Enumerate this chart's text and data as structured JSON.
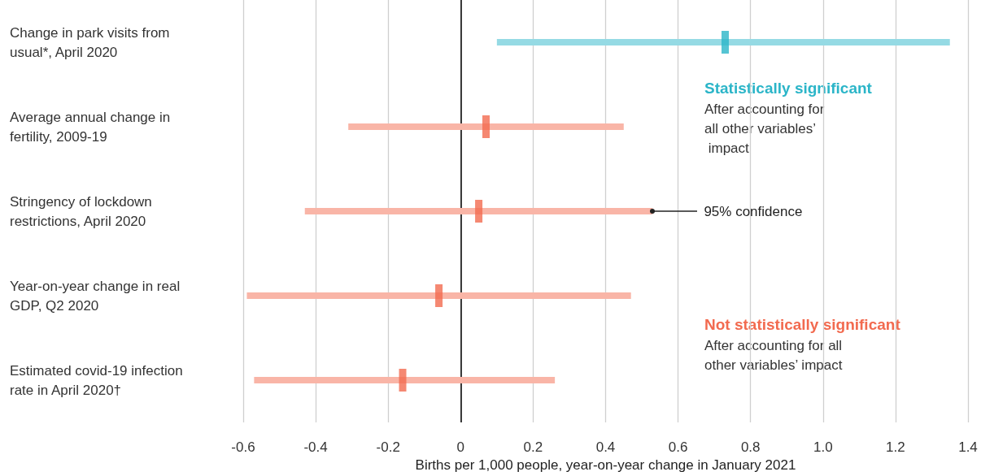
{
  "chart_data": {
    "type": "scatter",
    "orientation": "horizontal",
    "categories": [
      "Change in park visits from usual*, April 2020",
      "Average annual change in fertility, 2009-19",
      "Stringency of lockdown restrictions, April 2020",
      "Year-on-year change in real GDP, Q2 2020",
      "Estimated covid-19 infection rate in April 2020†"
    ],
    "values": [
      0.73,
      0.07,
      0.05,
      -0.06,
      -0.16
    ],
    "errors": [
      [
        0.1,
        1.35
      ],
      [
        -0.31,
        0.45
      ],
      [
        -0.43,
        0.53
      ],
      [
        -0.59,
        0.47
      ],
      [
        -0.57,
        0.26
      ]
    ],
    "colors": [
      "#2bb5c8",
      "#f26a4f",
      "#f26a4f",
      "#f26a4f",
      "#f26a4f"
    ],
    "xlabel": "Births per 1,000 people, year-on-year change in January 2021",
    "xlim": [
      -0.6,
      1.4
    ],
    "xticks": [
      -0.6,
      -0.4,
      -0.2,
      0,
      0.2,
      0.4,
      0.6,
      0.8,
      {
        "value": 1,
        "label": "1.0"
      },
      1.2,
      1.4
    ],
    "grid": "x",
    "ref_lines": [
      {
        "axis": "x",
        "value": 0,
        "color": "#000000"
      }
    ],
    "annotations": [
      "Statistically significant",
      "After accounting for all other variables’ impact",
      {
        "text": "95% confidence",
        "x": 0.53,
        "y": "Stringency of lockdown restrictions, April 2020"
      },
      "Not statistically significant",
      "After accounting for all other variables’ impact"
    ]
  }
}
